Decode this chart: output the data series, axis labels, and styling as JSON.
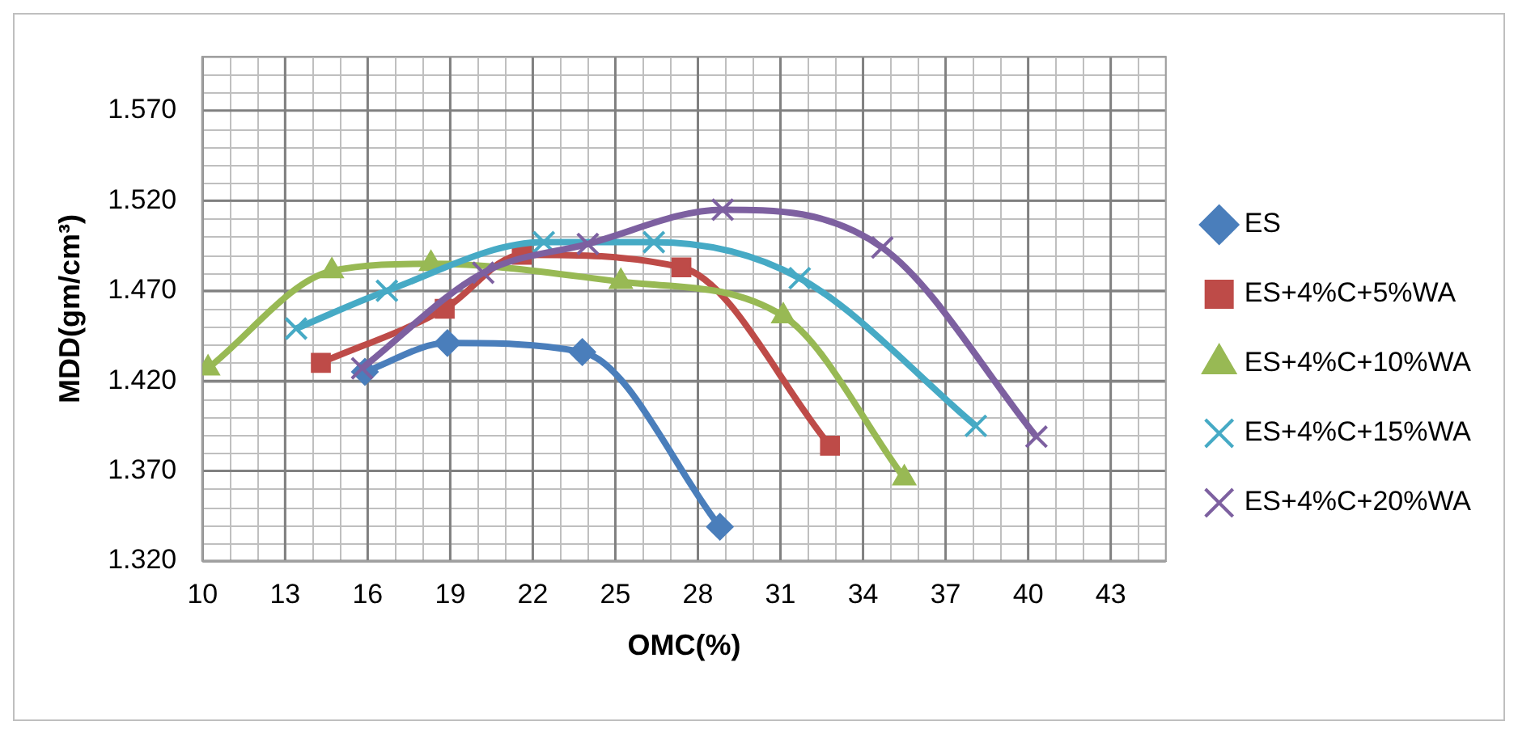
{
  "chart_data": {
    "type": "line",
    "xlabel": "OMC(%)",
    "ylabel": "MDD(gm/cm³)",
    "xlim": [
      10,
      45
    ],
    "xticks": [
      10,
      13,
      16,
      19,
      22,
      25,
      28,
      31,
      34,
      37,
      40,
      43
    ],
    "ylim": [
      1.32,
      1.6
    ],
    "yticks": [
      {
        "value": 1.32,
        "label": "1.320"
      },
      {
        "value": 1.37,
        "label": "1.370"
      },
      {
        "value": 1.42,
        "label": "1.420"
      },
      {
        "value": 1.47,
        "label": "1.470"
      },
      {
        "value": 1.52,
        "label": "1.520"
      },
      {
        "value": 1.57,
        "label": "1.570"
      }
    ],
    "grid": true,
    "legend": "right",
    "series": [
      {
        "name": "ES",
        "color": "#4a7ebb",
        "marker": "diamond",
        "x": [
          15.9,
          18.9,
          23.8,
          28.8
        ],
        "values": [
          1.425,
          1.441,
          1.436,
          1.339
        ]
      },
      {
        "name": "ES+4%C+5%WA",
        "color": "#be4b48",
        "marker": "square",
        "x": [
          14.3,
          18.8,
          21.6,
          27.4,
          32.8
        ],
        "values": [
          1.43,
          1.46,
          1.49,
          1.483,
          1.384
        ]
      },
      {
        "name": "ES+4%C+10%WA",
        "color": "#98b954",
        "marker": "triangle",
        "x": [
          10.2,
          14.7,
          18.3,
          25.2,
          31.1,
          35.5
        ],
        "values": [
          1.427,
          1.481,
          1.485,
          1.475,
          1.456,
          1.366
        ]
      },
      {
        "name": "ES+4%C+15%WA",
        "color": "#46aac5",
        "marker": "cross",
        "x": [
          13.4,
          16.7,
          22.4,
          26.4,
          31.7,
          38.1
        ],
        "values": [
          1.449,
          1.47,
          1.497,
          1.497,
          1.477,
          1.395
        ]
      },
      {
        "name": "ES+4%C+20%WA",
        "color": "#7d60a0",
        "marker": "cross",
        "x": [
          15.8,
          20.2,
          24.0,
          28.9,
          34.7,
          40.3
        ],
        "values": [
          1.427,
          1.48,
          1.496,
          1.515,
          1.494,
          1.389
        ]
      }
    ]
  }
}
